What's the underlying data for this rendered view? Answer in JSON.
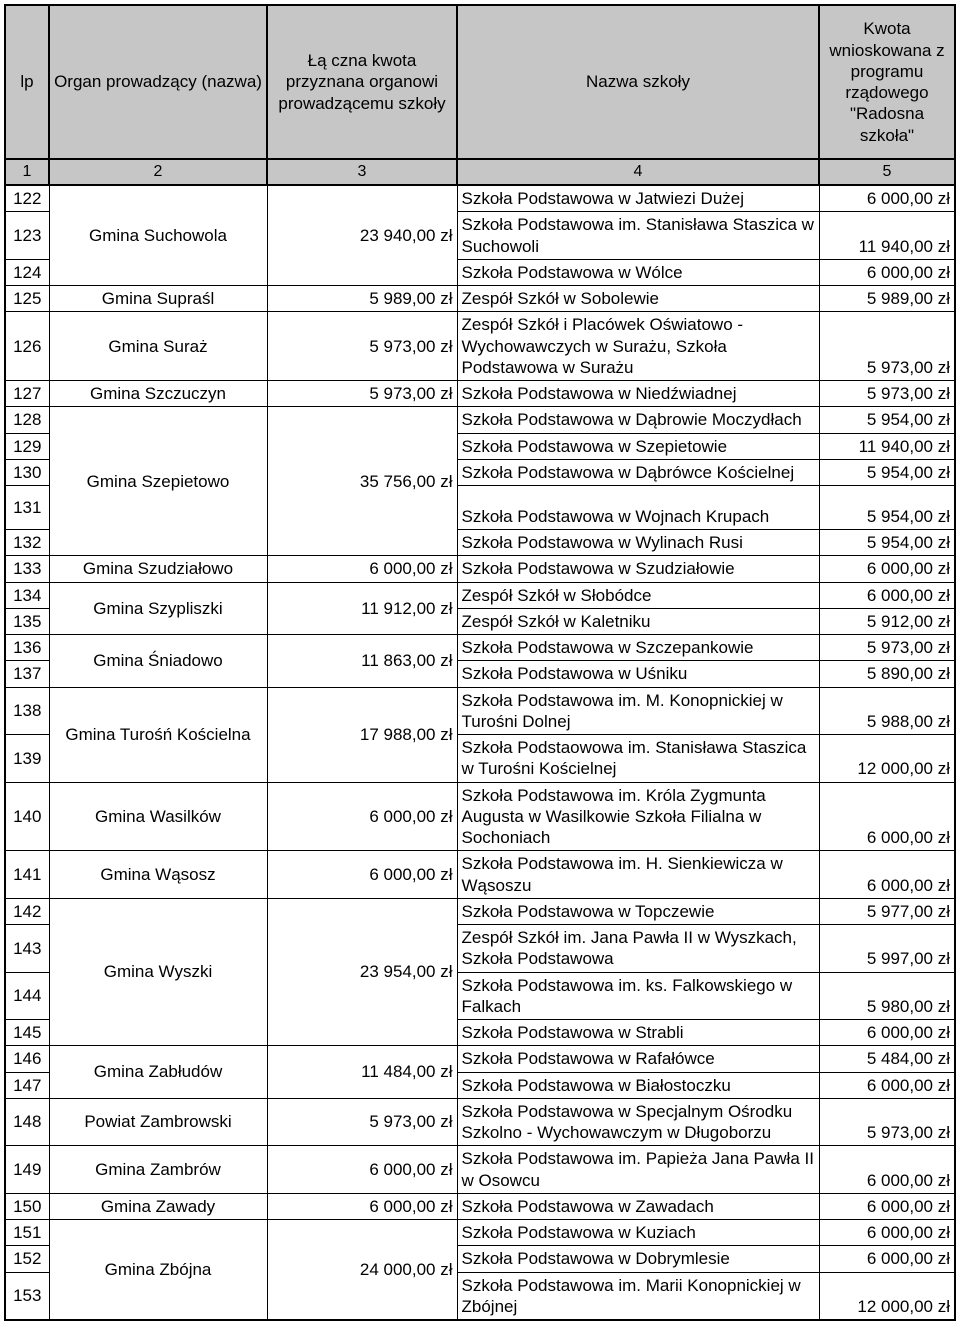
{
  "headers": {
    "lp": "lp",
    "organ": "Organ prowadzący (nazwa)",
    "amount": "Łą czna kwota przyznana organowi prowadzącemu szkoły",
    "school": "Nazwa szkoły",
    "kwota": "Kwota wnioskowana z programu rządowego \"Radosna szkoła\""
  },
  "header_nums": {
    "c1": "1",
    "c2": "2",
    "c3": "3",
    "c4": "4",
    "c5": "5"
  },
  "groups": [
    {
      "organ": "Gmina Suchowola",
      "amount": "23 940,00 zł",
      "rows": [
        {
          "lp": "122",
          "school": "Szkoła Podstawowa w Jatwiezi Dużej",
          "kwota": "6 000,00 zł"
        },
        {
          "lp": "123",
          "school": "Szkoła Podstawowa im. Stanisława Staszica w Suchowoli",
          "kwota": "11 940,00 zł"
        },
        {
          "lp": "124",
          "school": "Szkoła Podstawowa w Wólce",
          "kwota": "6 000,00 zł"
        }
      ]
    },
    {
      "organ": "Gmina Supraśl",
      "amount": "5 989,00 zł",
      "rows": [
        {
          "lp": "125",
          "school": "Zespół Szkół w Sobolewie",
          "kwota": "5 989,00 zł"
        }
      ]
    },
    {
      "organ": "Gmina Suraż",
      "amount": "5 973,00 zł",
      "rows": [
        {
          "lp": "126",
          "school": "Zespół Szkół i Placówek Oświatowo - Wychowawczych w Surażu, Szkoła Podstawowa w Surażu",
          "kwota": "5 973,00 zł"
        }
      ]
    },
    {
      "organ": "Gmina Szczuczyn",
      "amount": "5 973,00 zł",
      "rows": [
        {
          "lp": "127",
          "school": "Szkoła Podstawowa w Niedźwiadnej",
          "kwota": "5 973,00 zł"
        }
      ]
    },
    {
      "organ": "Gmina Szepietowo",
      "amount": "35 756,00 zł",
      "rows": [
        {
          "lp": "128",
          "school": "Szkoła Podstawowa w Dąbrowie Moczydłach",
          "kwota": "5 954,00 zł"
        },
        {
          "lp": "129",
          "school": "Szkoła Podstawowa w Szepietowie",
          "kwota": "11 940,00 zł"
        },
        {
          "lp": "130",
          "school": "Szkoła Podstawowa w Dąbrówce Kościelnej",
          "kwota": "5 954,00 zł"
        },
        {
          "lp": "131",
          "school": "Szkoła Podstawowa w Wojnach Krupach",
          "kwota": "5 954,00 zł",
          "tall": true
        },
        {
          "lp": "132",
          "school": "Szkoła Podstawowa w Wylinach Rusi",
          "kwota": "5 954,00 zł"
        }
      ]
    },
    {
      "organ": "Gmina Szudziałowo",
      "amount": "6 000,00 zł",
      "rows": [
        {
          "lp": "133",
          "school": "Szkoła Podstawowa w Szudziałowie",
          "kwota": "6 000,00 zł"
        }
      ]
    },
    {
      "organ": "Gmina Szypliszki",
      "amount": "11 912,00 zł",
      "rows": [
        {
          "lp": "134",
          "school": "Zespół Szkół  w Słobódce",
          "kwota": "6 000,00 zł"
        },
        {
          "lp": "135",
          "school": "Zespół Szkół w Kaletniku",
          "kwota": "5 912,00 zł"
        }
      ]
    },
    {
      "organ": "Gmina Śniadowo",
      "amount": "11 863,00 zł",
      "rows": [
        {
          "lp": "136",
          "school": "Szkoła Podstawowa w Szczepankowie",
          "kwota": "5 973,00 zł"
        },
        {
          "lp": "137",
          "school": "Szkoła Podstawowa w Uśniku",
          "kwota": "5 890,00 zł"
        }
      ]
    },
    {
      "organ": "Gmina Turośń Kościelna",
      "amount": "17 988,00 zł",
      "rows": [
        {
          "lp": "138",
          "school": "Szkoła Podstawowa im. M. Konopnickiej w Turośni Dolnej",
          "kwota": "5 988,00 zł"
        },
        {
          "lp": "139",
          "school": "Szkoła Podstaowowa im. Stanisława Staszica w Turośni Kościelnej",
          "kwota": "12 000,00 zł"
        }
      ]
    },
    {
      "organ": "Gmina Wasilków",
      "amount": "6 000,00 zł",
      "rows": [
        {
          "lp": "140",
          "school": "Szkoła Podstawowa im. Króla Zygmunta Augusta w Wasilkowie Szkoła Filialna w Sochoniach",
          "kwota": "6 000,00 zł"
        }
      ]
    },
    {
      "organ": "Gmina Wąsosz",
      "amount": "6 000,00 zł",
      "rows": [
        {
          "lp": "141",
          "school": "Szkoła Podstawowa im. H. Sienkiewicza w Wąsoszu",
          "kwota": "6 000,00 zł"
        }
      ]
    },
    {
      "organ": "Gmina Wyszki",
      "amount": "23 954,00 zł",
      "rows": [
        {
          "lp": "142",
          "school": "Szkoła Podstawowa w Topczewie",
          "kwota": "5 977,00 zł"
        },
        {
          "lp": "143",
          "school": "Zespół Szkół im. Jana Pawła II w Wyszkach, Szkoła Podstawowa",
          "kwota": "5 997,00 zł"
        },
        {
          "lp": "144",
          "school": "Szkoła Podstawowa im. ks. Falkowskiego w Falkach",
          "kwota": "5 980,00 zł"
        },
        {
          "lp": "145",
          "school": "Szkoła Podstawowa w Strabli",
          "kwota": "6 000,00 zł"
        }
      ]
    },
    {
      "organ": "Gmina Zabłudów",
      "amount": "11 484,00 zł",
      "rows": [
        {
          "lp": "146",
          "school": "Szkoła Podstawowa w Rafałówce",
          "kwota": "5 484,00 zł"
        },
        {
          "lp": "147",
          "school": "Szkoła Podstawowa w Białostoczku",
          "kwota": "6 000,00 zł"
        }
      ]
    },
    {
      "organ": "Powiat Zambrowski",
      "amount": "5 973,00 zł",
      "rows": [
        {
          "lp": "148",
          "school": "Szkoła Podstawowa w Specjalnym Ośrodku Szkolno - Wychowawczym w Długoborzu",
          "kwota": "5 973,00 zł"
        }
      ]
    },
    {
      "organ": "Gmina Zambrów",
      "amount": "6 000,00 zł",
      "rows": [
        {
          "lp": "149",
          "school": "Szkoła Podstawowa im. Papieża Jana Pawła II w Osowcu",
          "kwota": "6 000,00 zł"
        }
      ]
    },
    {
      "organ": "Gmina Zawady",
      "amount": "6 000,00 zł",
      "rows": [
        {
          "lp": "150",
          "school": "Szkoła Podstawowa w Zawadach",
          "kwota": "6 000,00 zł"
        }
      ]
    },
    {
      "organ": "Gmina Zbójna",
      "amount": "24 000,00 zł",
      "rows": [
        {
          "lp": "151",
          "school": "Szkoła Podstawowa w Kuziach",
          "kwota": "6 000,00 zł"
        },
        {
          "lp": "152",
          "school": "Szkoła Podstawowa w Dobrymlesie",
          "kwota": "6 000,00 zł"
        },
        {
          "lp": "153",
          "school": "Szkoła Podstawowa im. Marii Konopnickiej w Zbójnej",
          "kwota": "12 000,00 zł"
        }
      ]
    }
  ]
}
